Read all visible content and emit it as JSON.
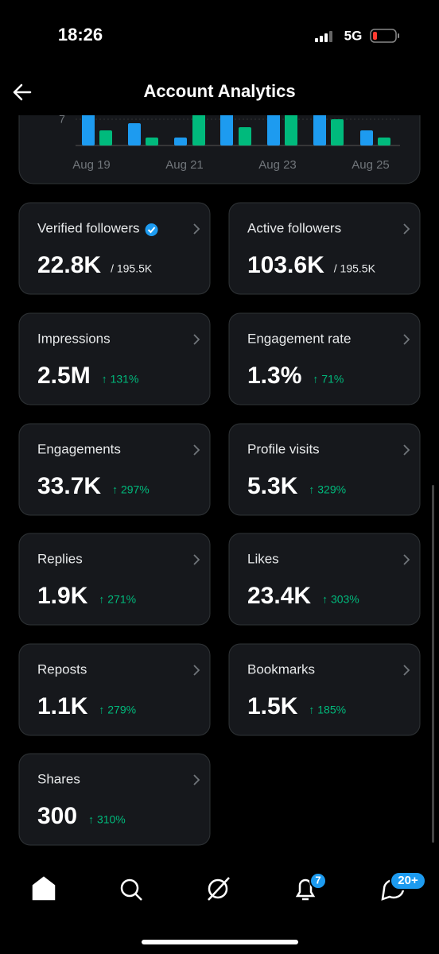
{
  "status": {
    "time": "18:26",
    "network": "5G"
  },
  "header": {
    "title": "Account Analytics"
  },
  "chart": {
    "y_label": "7",
    "x_labels": [
      "Aug 19",
      "Aug 21",
      "Aug 23",
      "Aug 25"
    ]
  },
  "cards": [
    {
      "label": "Verified followers",
      "value": "22.8K",
      "detail": "/ 195.5K",
      "verified": true
    },
    {
      "label": "Active followers",
      "value": "103.6K",
      "detail": "/ 195.5K"
    },
    {
      "label": "Impressions",
      "value": "2.5M",
      "change": "↑ 131%"
    },
    {
      "label": "Engagement rate",
      "value": "1.3%",
      "change": "↑ 71%"
    },
    {
      "label": "Engagements",
      "value": "33.7K",
      "change": "↑ 297%"
    },
    {
      "label": "Profile visits",
      "value": "5.3K",
      "change": "↑ 329%"
    },
    {
      "label": "Replies",
      "value": "1.9K",
      "change": "↑ 271%"
    },
    {
      "label": "Likes",
      "value": "23.4K",
      "change": "↑ 303%"
    },
    {
      "label": "Reposts",
      "value": "1.1K",
      "change": "↑ 279%"
    },
    {
      "label": "Bookmarks",
      "value": "1.5K",
      "change": "↑ 185%"
    },
    {
      "label": "Shares",
      "value": "300",
      "change": "↑ 310%"
    }
  ],
  "nav": {
    "notifications_badge": "7",
    "messages_badge": "20+"
  }
}
